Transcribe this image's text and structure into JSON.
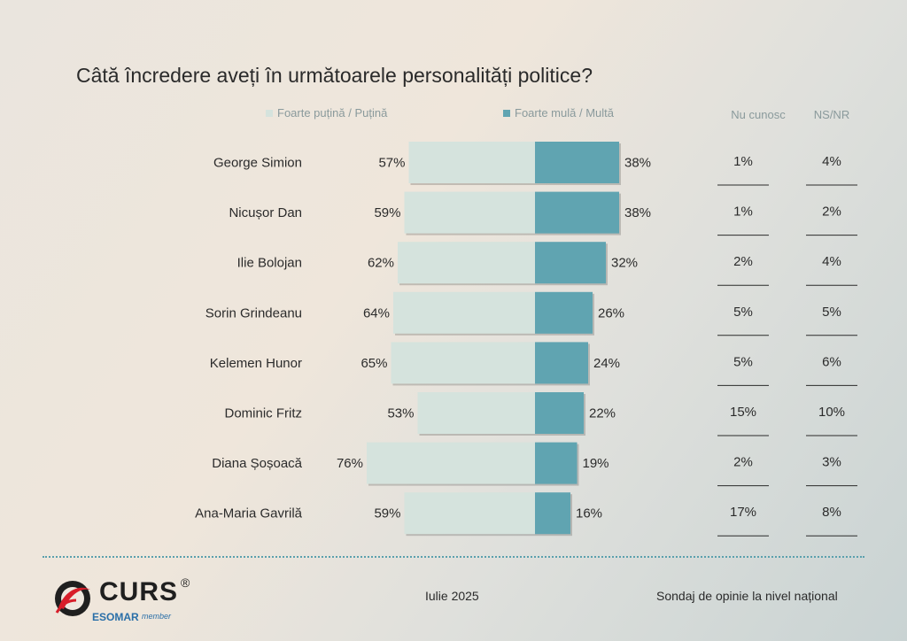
{
  "title": "Câtă încredere aveți în următoarele personalități politice?",
  "legend": {
    "low": "Foarte puțină / Puțină",
    "high": "Foarte mulă / Multă",
    "low_color": "#d5e3dd",
    "high_color": "#60a4b1"
  },
  "columns": {
    "dont_know": "Nu cunosc",
    "ns_nr": "NS/NR"
  },
  "chart_data": {
    "type": "bar",
    "orientation": "diverging-horizontal",
    "categories": [
      "George Simion",
      "Nicușor Dan",
      "Ilie Bolojan",
      "Sorin Grindeanu",
      "Kelemen Hunor",
      "Dominic Fritz",
      "Diana Șoșoacă",
      "Ana-Maria Gavrilă"
    ],
    "series": [
      {
        "name": "Foarte puțină / Puțină",
        "values": [
          57,
          59,
          62,
          64,
          65,
          53,
          76,
          59
        ],
        "labels": [
          "57%",
          "59%",
          "62%",
          "64%",
          "65%",
          "53%",
          "76%",
          "59%"
        ],
        "color": "#d5e3dd"
      },
      {
        "name": "Foarte mulă / Multă",
        "values": [
          38,
          38,
          32,
          26,
          24,
          22,
          19,
          16
        ],
        "labels": [
          "38%",
          "38%",
          "32%",
          "26%",
          "24%",
          "22%",
          "19%",
          "16%"
        ],
        "color": "#60a4b1"
      }
    ],
    "table": {
      "Nu cunosc": [
        "1%",
        "1%",
        "2%",
        "5%",
        "5%",
        "15%",
        "2%",
        "17%"
      ],
      "NS/NR": [
        "4%",
        "2%",
        "4%",
        "5%",
        "6%",
        "10%",
        "3%",
        "8%"
      ]
    }
  },
  "footer": {
    "brand": "CURS",
    "registered": "®",
    "esomar": "ESOMAR",
    "member": "member",
    "date": "Iulie 2025",
    "survey": "Sondaj de opinie la nivel național"
  }
}
